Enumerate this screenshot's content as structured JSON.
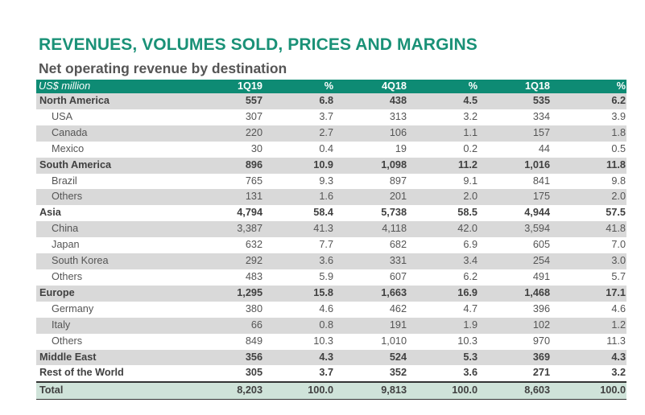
{
  "title": "REVENUES, VOLUMES SOLD, PRICES AND MARGINS",
  "subtitle": "Net operating revenue by destination",
  "header": [
    "US$ million",
    "1Q19",
    "%",
    "4Q18",
    "%",
    "1Q18",
    "%"
  ],
  "rows": [
    {
      "label": "North America",
      "kind": "group",
      "values": [
        "557",
        "6.8",
        "438",
        "4.5",
        "535",
        "6.2"
      ]
    },
    {
      "label": "USA",
      "kind": "sub",
      "values": [
        "307",
        "3.7",
        "313",
        "3.2",
        "334",
        "3.9"
      ]
    },
    {
      "label": "Canada",
      "kind": "sub",
      "values": [
        "220",
        "2.7",
        "106",
        "1.1",
        "157",
        "1.8"
      ]
    },
    {
      "label": "Mexico",
      "kind": "sub",
      "values": [
        "30",
        "0.4",
        "19",
        "0.2",
        "44",
        "0.5"
      ]
    },
    {
      "label": "South America",
      "kind": "group",
      "values": [
        "896",
        "10.9",
        "1,098",
        "11.2",
        "1,016",
        "11.8"
      ]
    },
    {
      "label": "Brazil",
      "kind": "sub",
      "values": [
        "765",
        "9.3",
        "897",
        "9.1",
        "841",
        "9.8"
      ]
    },
    {
      "label": "Others",
      "kind": "sub",
      "values": [
        "131",
        "1.6",
        "201",
        "2.0",
        "175",
        "2.0"
      ]
    },
    {
      "label": "Asia",
      "kind": "group",
      "values": [
        "4,794",
        "58.4",
        "5,738",
        "58.5",
        "4,944",
        "57.5"
      ]
    },
    {
      "label": "China",
      "kind": "sub",
      "values": [
        "3,387",
        "41.3",
        "4,118",
        "42.0",
        "3,594",
        "41.8"
      ]
    },
    {
      "label": "Japan",
      "kind": "sub",
      "values": [
        "632",
        "7.7",
        "682",
        "6.9",
        "605",
        "7.0"
      ]
    },
    {
      "label": "South Korea",
      "kind": "sub",
      "values": [
        "292",
        "3.6",
        "331",
        "3.4",
        "254",
        "3.0"
      ]
    },
    {
      "label": "Others",
      "kind": "sub",
      "values": [
        "483",
        "5.9",
        "607",
        "6.2",
        "491",
        "5.7"
      ]
    },
    {
      "label": "Europe",
      "kind": "group",
      "values": [
        "1,295",
        "15.8",
        "1,663",
        "16.9",
        "1,468",
        "17.1"
      ]
    },
    {
      "label": "Germany",
      "kind": "sub",
      "values": [
        "380",
        "4.6",
        "462",
        "4.7",
        "396",
        "4.6"
      ]
    },
    {
      "label": "Italy",
      "kind": "sub",
      "values": [
        "66",
        "0.8",
        "191",
        "1.9",
        "102",
        "1.2"
      ]
    },
    {
      "label": "Others",
      "kind": "sub",
      "values": [
        "849",
        "10.3",
        "1,010",
        "10.3",
        "970",
        "11.3"
      ]
    },
    {
      "label": "Middle East",
      "kind": "group",
      "values": [
        "356",
        "4.3",
        "524",
        "5.3",
        "369",
        "4.3"
      ]
    },
    {
      "label": "Rest of the World",
      "kind": "group",
      "values": [
        "305",
        "3.7",
        "352",
        "3.6",
        "271",
        "3.2"
      ]
    }
  ],
  "total": {
    "label": "Total",
    "values": [
      "8,203",
      "100.0",
      "9,813",
      "100.0",
      "8,603",
      "100.0"
    ]
  },
  "colors": {
    "accent": "#1a9177",
    "header_bg": "#0e8b74",
    "row_shade": "#d9d9d9",
    "total_bg": "#cfe3d9"
  }
}
